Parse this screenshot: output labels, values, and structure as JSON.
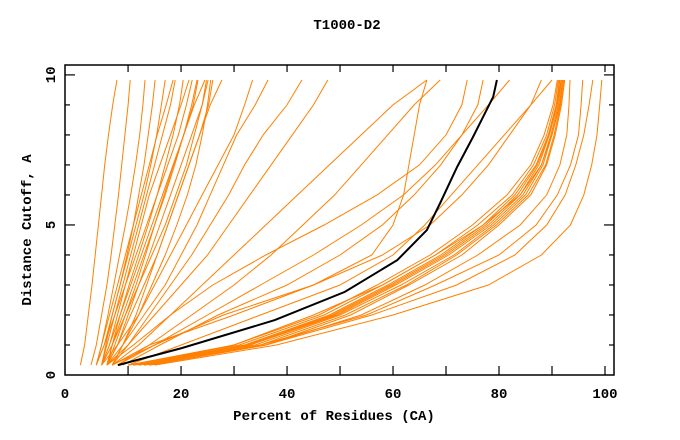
{
  "chart_data": {
    "type": "line",
    "title": "T1000-D2",
    "xlabel": "Percent of Residues (CA)",
    "ylabel": "Distance Cutoff, A",
    "xlim": [
      -1.9,
      101.7
    ],
    "ylim": [
      0,
      10.33
    ],
    "x_ticks": [
      "0",
      "20",
      "40",
      "60",
      "80",
      "100"
    ],
    "x_tick_values": [
      0,
      20,
      40,
      60,
      80,
      100
    ],
    "y_ticks": [
      "0",
      "5",
      "10"
    ],
    "y_tick_values": [
      0,
      5,
      10
    ],
    "grid": false,
    "colors": {
      "models": "#ff8000",
      "highlight": "#000000"
    },
    "y_levels": [
      0.33,
      1,
      2,
      3,
      4,
      5,
      6,
      7,
      8,
      9,
      9.83
    ],
    "highlight_series": {
      "x": [
        8.1,
        20.2,
        37.7,
        50.9,
        60.8,
        66.4,
        68.9,
        72.1,
        75.1,
        78.9,
        79.6
      ],
      "y": [
        0.33,
        0.9,
        1.83,
        2.77,
        3.83,
        4.83,
        5.73,
        6.93,
        7.93,
        9.27,
        9.83
      ]
    },
    "series": [
      [
        1,
        1.8,
        2.5,
        3.2,
        3.8,
        4.4,
        5,
        5.6,
        6.3,
        7.1,
        7.9
      ],
      [
        3,
        4,
        5,
        6,
        6.8,
        7.5,
        8.2,
        8.8,
        9.4,
        10,
        10.4
      ],
      [
        4,
        5,
        6.2,
        7.3,
        8.4,
        9.5,
        10.5,
        11.4,
        12.2,
        12.8,
        13.2
      ],
      [
        5,
        5.8,
        7,
        8.5,
        9.8,
        11,
        12,
        13,
        13.8,
        14.6,
        15.1
      ],
      [
        4,
        5.5,
        7,
        8.5,
        10,
        11.5,
        13,
        14.3,
        15.4,
        16.3,
        17
      ],
      [
        5,
        6,
        7.5,
        9,
        10.5,
        12,
        13.5,
        15,
        16.5,
        18,
        18.9
      ],
      [
        6,
        7,
        8.5,
        10.2,
        12,
        13.8,
        15.5,
        17,
        18.5,
        19.7,
        20.4
      ],
      [
        4,
        5.5,
        7.5,
        9.5,
        11.5,
        13.5,
        15.5,
        17.5,
        19.5,
        21,
        22.1
      ],
      [
        6,
        7.5,
        9.5,
        11.5,
        13.3,
        15,
        16.8,
        18.6,
        20.5,
        22.3,
        23.2
      ],
      [
        5,
        6.5,
        8.5,
        10.5,
        12.5,
        14.5,
        16.5,
        18.5,
        20.5,
        22.5,
        24.5
      ],
      [
        6,
        8,
        10,
        12,
        14,
        16,
        18,
        20,
        22,
        24,
        25.1
      ],
      [
        7,
        9,
        11.5,
        13.5,
        15.5,
        17.5,
        19.5,
        21.5,
        23.5,
        25.5,
        27.7
      ],
      [
        5,
        6.5,
        8,
        9.5,
        11,
        12.5,
        14,
        16,
        18,
        20,
        21.5
      ],
      [
        4,
        5,
        6.5,
        8,
        9.5,
        11,
        12.5,
        14,
        15.5,
        17.2,
        18.5
      ],
      [
        6,
        7,
        9,
        11,
        13,
        15,
        17,
        18.8,
        20.5,
        22,
        23
      ],
      [
        5,
        7,
        9.5,
        12,
        14.5,
        17,
        19,
        21,
        22.5,
        24,
        24.8
      ],
      [
        7,
        9,
        12,
        14.5,
        17,
        19.2,
        21.2,
        22.8,
        24,
        25,
        25.6
      ],
      [
        6,
        8,
        10.5,
        13,
        15.5,
        17.5,
        19.5,
        21.5,
        23.5,
        25.2,
        26
      ],
      [
        6,
        9,
        13,
        17,
        20,
        23,
        25.5,
        28,
        30.5,
        34,
        36.4
      ],
      [
        7,
        10,
        14,
        18,
        22,
        25.5,
        29,
        32,
        35.5,
        40,
        42.8
      ],
      [
        6,
        10,
        15,
        20,
        25,
        29,
        33,
        37,
        41,
        45,
        47.7
      ],
      [
        5,
        8,
        12,
        15,
        18,
        21,
        24,
        27,
        30,
        32,
        33.5
      ],
      [
        7,
        12,
        18,
        24,
        30,
        36,
        42,
        48,
        54,
        60,
        66.4
      ],
      [
        8,
        14,
        22,
        30,
        37,
        43,
        49,
        54,
        59,
        64,
        68.9
      ],
      [
        7,
        14,
        30,
        45,
        56,
        60,
        62,
        63,
        64,
        65,
        66.4
      ],
      [
        8,
        15,
        25,
        35,
        45,
        54,
        62,
        68,
        73,
        76,
        77
      ],
      [
        6,
        11,
        18,
        26,
        36,
        47,
        57,
        65,
        70,
        73,
        74
      ],
      [
        9,
        16,
        27,
        40,
        50,
        58,
        64,
        69,
        73,
        78,
        82
      ],
      [
        10,
        20,
        35,
        50,
        60,
        66,
        71,
        76,
        81,
        86,
        88
      ],
      [
        7,
        15,
        28,
        45,
        58,
        67,
        73,
        78,
        82,
        86,
        90
      ],
      [
        11,
        33,
        49,
        60,
        70,
        78,
        84,
        87.5,
        89.5,
        91,
        91.7
      ],
      [
        10,
        31,
        47,
        58,
        68,
        76,
        82.5,
        86.5,
        89,
        90.5,
        91.2
      ],
      [
        12,
        34,
        50,
        61.5,
        71.5,
        79,
        85,
        88.3,
        90,
        91.4,
        92
      ],
      [
        11,
        32,
        48,
        59,
        69,
        77,
        83,
        87,
        89.3,
        90.8,
        91.4
      ],
      [
        13,
        35,
        51,
        62.5,
        72,
        79.5,
        85.5,
        88.8,
        90.4,
        91.6,
        92.2
      ],
      [
        10,
        30,
        46,
        57,
        67,
        75,
        81.5,
        86,
        88.5,
        90.2,
        91
      ],
      [
        12,
        33,
        49.5,
        60.5,
        70.5,
        78.5,
        84.5,
        88,
        89.8,
        91.2,
        91.8
      ],
      [
        11,
        32.5,
        48.5,
        59.5,
        69.5,
        77.5,
        83.5,
        87.2,
        89.5,
        90.9,
        91.5
      ],
      [
        14,
        36,
        52,
        63,
        73,
        80,
        86,
        89,
        90.6,
        91.8,
        92.4
      ],
      [
        12,
        30,
        45,
        58,
        68,
        77,
        84,
        88,
        90,
        91.5,
        92
      ],
      [
        13,
        35,
        55,
        68,
        80,
        87,
        91,
        93.5,
        95,
        95.5,
        95.8
      ],
      [
        14,
        36,
        54,
        66,
        76,
        84,
        89,
        91.5,
        92.8,
        93.2,
        93.4
      ],
      [
        14,
        36,
        56,
        72,
        83,
        89,
        92.5,
        94.5,
        96,
        97,
        97.7
      ],
      [
        15,
        38,
        60,
        78,
        88,
        93.5,
        96,
        97.5,
        98.5,
        99,
        99.4
      ]
    ]
  }
}
